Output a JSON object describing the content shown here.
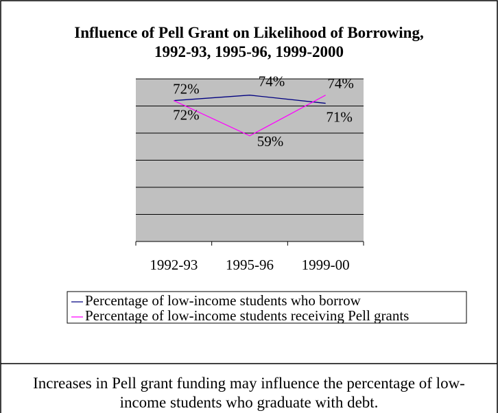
{
  "chart_data": {
    "type": "line",
    "title": "Influence of Pell Grant on Likelihood of Borrowing, 1992-93, 1995-96, 1999-2000",
    "categories": [
      "1992-93",
      "1995-96",
      "1999-00"
    ],
    "series": [
      {
        "name": "Percentage of low-income students who borrow",
        "color": "#000080",
        "values": [
          72,
          74,
          71
        ],
        "value_labels": [
          "72%",
          "74%",
          "71%"
        ]
      },
      {
        "name": "Percentage of low-income students receiving Pell grants",
        "color": "#ff00ff",
        "values": [
          72,
          59,
          74
        ],
        "value_labels": [
          "72%",
          "59%",
          "74%"
        ]
      }
    ],
    "ylim": [
      20,
      80
    ],
    "yticks": [
      20,
      30,
      40,
      50,
      60,
      70,
      80
    ],
    "grid": true,
    "caption": "Increases in Pell grant funding may influence the percentage of low-income students who graduate with debt."
  }
}
